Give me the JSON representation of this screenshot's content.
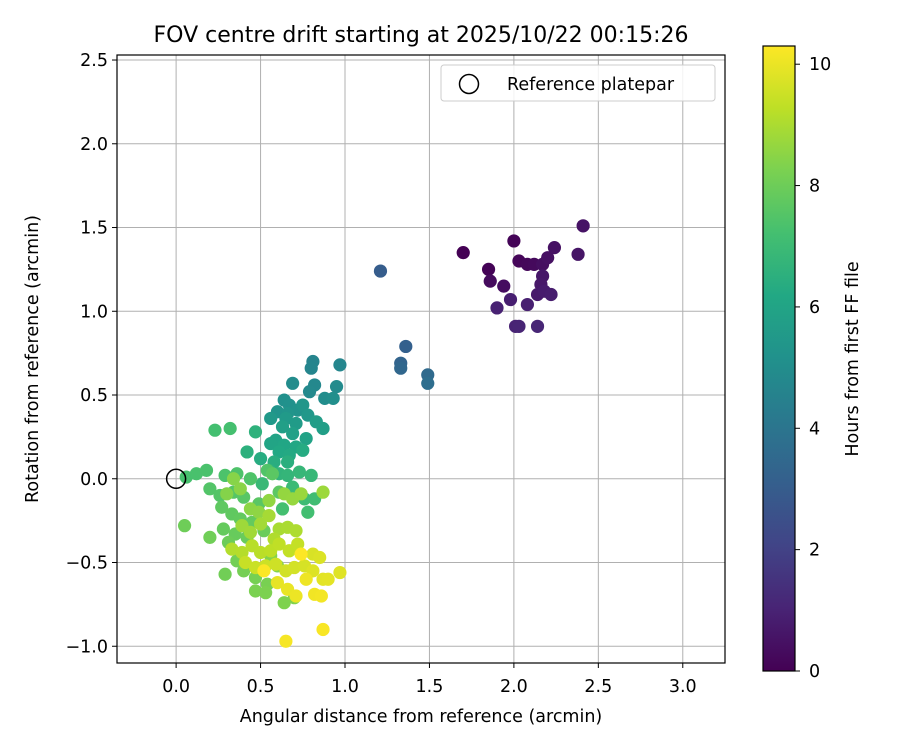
{
  "chart_data": {
    "type": "scatter",
    "title": "FOV centre drift starting at 2025/10/22 00:15:26",
    "xlabel": "Angular distance from reference (arcmin)",
    "ylabel": "Rotation from reference (arcmin)",
    "xlim": [
      -0.35,
      3.25
    ],
    "ylim": [
      -1.1,
      2.53
    ],
    "xticks": [
      0.0,
      0.5,
      1.0,
      1.5,
      2.0,
      2.5,
      3.0
    ],
    "xtick_labels": [
      "0.0",
      "0.5",
      "1.0",
      "1.5",
      "2.0",
      "2.5",
      "3.0"
    ],
    "yticks": [
      -1.0,
      -0.5,
      0.0,
      0.5,
      1.0,
      1.5,
      2.0,
      2.5
    ],
    "ytick_labels": [
      "−1.0",
      "−0.5",
      "0.0",
      "0.5",
      "1.0",
      "1.5",
      "2.0",
      "2.5"
    ],
    "grid": true,
    "legend": {
      "position": "top-right",
      "entries": [
        "Reference platepar"
      ]
    },
    "reference_point": [
      0.0,
      0.0
    ],
    "colorbar": {
      "label": "Hours from first FF file",
      "range": [
        0,
        10.3
      ],
      "ticks": [
        0,
        2,
        4,
        6,
        8,
        10
      ],
      "tick_labels": [
        "0",
        "2",
        "4",
        "6",
        "8",
        "10"
      ],
      "colormap": "viridis"
    },
    "clusters": [
      {
        "hours": [
          0,
          1.1
        ],
        "points": [
          [
            1.7,
            1.35
          ],
          [
            1.85,
            1.25
          ],
          [
            2.0,
            1.42
          ],
          [
            2.03,
            1.3
          ],
          [
            2.08,
            1.28
          ],
          [
            2.12,
            1.28
          ],
          [
            1.86,
            1.18
          ],
          [
            1.94,
            1.15
          ],
          [
            2.17,
            1.28
          ],
          [
            2.2,
            1.32
          ],
          [
            2.24,
            1.38
          ],
          [
            2.41,
            1.51
          ],
          [
            2.38,
            1.34
          ],
          [
            2.17,
            1.21
          ],
          [
            2.16,
            1.16
          ],
          [
            2.14,
            1.1
          ],
          [
            2.18,
            1.12
          ],
          [
            2.22,
            1.1
          ],
          [
            1.98,
            1.07
          ],
          [
            2.08,
            1.04
          ],
          [
            1.9,
            1.02
          ],
          [
            2.01,
            0.91
          ],
          [
            2.03,
            0.91
          ],
          [
            2.14,
            0.91
          ]
        ]
      },
      {
        "hours": [
          3.0,
          3.7
        ],
        "points": [
          [
            1.21,
            1.24
          ],
          [
            1.36,
            0.79
          ],
          [
            1.33,
            0.69
          ],
          [
            1.33,
            0.66
          ],
          [
            1.49,
            0.62
          ],
          [
            1.49,
            0.57
          ]
        ]
      },
      {
        "hours": [
          4.6,
          7.2
        ],
        "points": [
          [
            0.81,
            0.7
          ],
          [
            0.8,
            0.66
          ],
          [
            0.97,
            0.68
          ],
          [
            0.82,
            0.56
          ],
          [
            0.79,
            0.52
          ],
          [
            0.95,
            0.55
          ],
          [
            0.69,
            0.57
          ],
          [
            0.88,
            0.48
          ],
          [
            0.93,
            0.48
          ],
          [
            0.64,
            0.47
          ],
          [
            0.67,
            0.44
          ],
          [
            0.72,
            0.41
          ],
          [
            0.6,
            0.4
          ],
          [
            0.66,
            0.39
          ],
          [
            0.75,
            0.44
          ],
          [
            0.78,
            0.38
          ],
          [
            0.56,
            0.36
          ],
          [
            0.65,
            0.36
          ],
          [
            0.71,
            0.33
          ],
          [
            0.83,
            0.34
          ],
          [
            0.87,
            0.3
          ],
          [
            0.63,
            0.31
          ],
          [
            0.69,
            0.27
          ],
          [
            0.77,
            0.24
          ],
          [
            0.59,
            0.23
          ],
          [
            0.56,
            0.21
          ],
          [
            0.64,
            0.2
          ],
          [
            0.71,
            0.19
          ],
          [
            0.61,
            0.16
          ],
          [
            0.67,
            0.14
          ],
          [
            0.75,
            0.17
          ],
          [
            0.5,
            0.12
          ],
          [
            0.58,
            0.1
          ],
          [
            0.66,
            0.1
          ],
          [
            0.42,
            0.16
          ],
          [
            0.47,
            0.28
          ],
          [
            0.55,
            0.05
          ],
          [
            0.61,
            0.03
          ],
          [
            0.66,
            0.02
          ],
          [
            0.73,
            0.04
          ],
          [
            0.8,
            0.02
          ],
          [
            0.51,
            -0.03
          ],
          [
            0.69,
            -0.05
          ],
          [
            0.76,
            -0.12
          ],
          [
            0.82,
            -0.12
          ],
          [
            0.78,
            -0.2
          ],
          [
            0.63,
            -0.18
          ]
        ]
      },
      {
        "hours": [
          7.2,
          8.4
        ],
        "points": [
          [
            0.23,
            0.29
          ],
          [
            0.32,
            0.3
          ],
          [
            0.06,
            0.01
          ],
          [
            0.12,
            0.03
          ],
          [
            0.18,
            0.05
          ],
          [
            0.29,
            0.02
          ],
          [
            0.36,
            0.03
          ],
          [
            0.44,
            0.0
          ],
          [
            0.54,
            0.05
          ],
          [
            0.2,
            -0.06
          ],
          [
            0.26,
            -0.1
          ],
          [
            0.34,
            -0.08
          ],
          [
            0.4,
            -0.11
          ],
          [
            0.49,
            -0.15
          ],
          [
            0.57,
            0.03
          ],
          [
            0.61,
            -0.08
          ],
          [
            0.27,
            -0.17
          ],
          [
            0.33,
            -0.21
          ],
          [
            0.38,
            -0.24
          ],
          [
            0.45,
            -0.26
          ],
          [
            0.28,
            -0.3
          ],
          [
            0.35,
            -0.33
          ],
          [
            0.42,
            -0.35
          ],
          [
            0.52,
            -0.31
          ],
          [
            0.31,
            -0.38
          ],
          [
            0.05,
            -0.28
          ],
          [
            0.2,
            -0.35
          ],
          [
            0.29,
            -0.57
          ],
          [
            0.36,
            -0.49
          ],
          [
            0.4,
            -0.55
          ],
          [
            0.47,
            -0.59
          ],
          [
            0.54,
            -0.63
          ],
          [
            0.47,
            -0.67
          ],
          [
            0.53,
            -0.68
          ],
          [
            0.64,
            -0.74
          ],
          [
            0.7,
            -0.71
          ],
          [
            0.56,
            -0.46
          ],
          [
            0.6,
            -0.52
          ]
        ]
      },
      {
        "hours": [
          8.4,
          10.3
        ],
        "points": [
          [
            0.3,
            -0.09
          ],
          [
            0.34,
            0.0
          ],
          [
            0.38,
            -0.06
          ],
          [
            0.44,
            -0.18
          ],
          [
            0.49,
            -0.2
          ],
          [
            0.55,
            -0.13
          ],
          [
            0.64,
            -0.09
          ],
          [
            0.69,
            -0.12
          ],
          [
            0.74,
            -0.09
          ],
          [
            0.87,
            -0.08
          ],
          [
            0.39,
            -0.28
          ],
          [
            0.44,
            -0.32
          ],
          [
            0.5,
            -0.27
          ],
          [
            0.55,
            -0.22
          ],
          [
            0.61,
            -0.3
          ],
          [
            0.66,
            -0.29
          ],
          [
            0.71,
            -0.31
          ],
          [
            0.58,
            -0.36
          ],
          [
            0.33,
            -0.42
          ],
          [
            0.39,
            -0.44
          ],
          [
            0.45,
            -0.4
          ],
          [
            0.5,
            -0.44
          ],
          [
            0.56,
            -0.43
          ],
          [
            0.61,
            -0.39
          ],
          [
            0.67,
            -0.43
          ],
          [
            0.72,
            -0.39
          ],
          [
            0.41,
            -0.5
          ],
          [
            0.47,
            -0.53
          ],
          [
            0.53,
            -0.52
          ],
          [
            0.59,
            -0.51
          ],
          [
            0.65,
            -0.55
          ],
          [
            0.7,
            -0.53
          ],
          [
            0.76,
            -0.52
          ],
          [
            0.81,
            -0.45
          ],
          [
            0.85,
            -0.47
          ],
          [
            0.81,
            -0.55
          ],
          [
            0.97,
            -0.56
          ],
          [
            0.87,
            -0.6
          ],
          [
            0.9,
            -0.6
          ],
          [
            0.6,
            -0.62
          ],
          [
            0.66,
            -0.66
          ],
          [
            0.71,
            -0.7
          ],
          [
            0.77,
            -0.6
          ],
          [
            0.82,
            -0.69
          ],
          [
            0.86,
            -0.7
          ],
          [
            0.65,
            -0.97
          ],
          [
            0.87,
            -0.9
          ],
          [
            0.52,
            -0.55
          ],
          [
            0.74,
            -0.45
          ]
        ]
      }
    ]
  }
}
